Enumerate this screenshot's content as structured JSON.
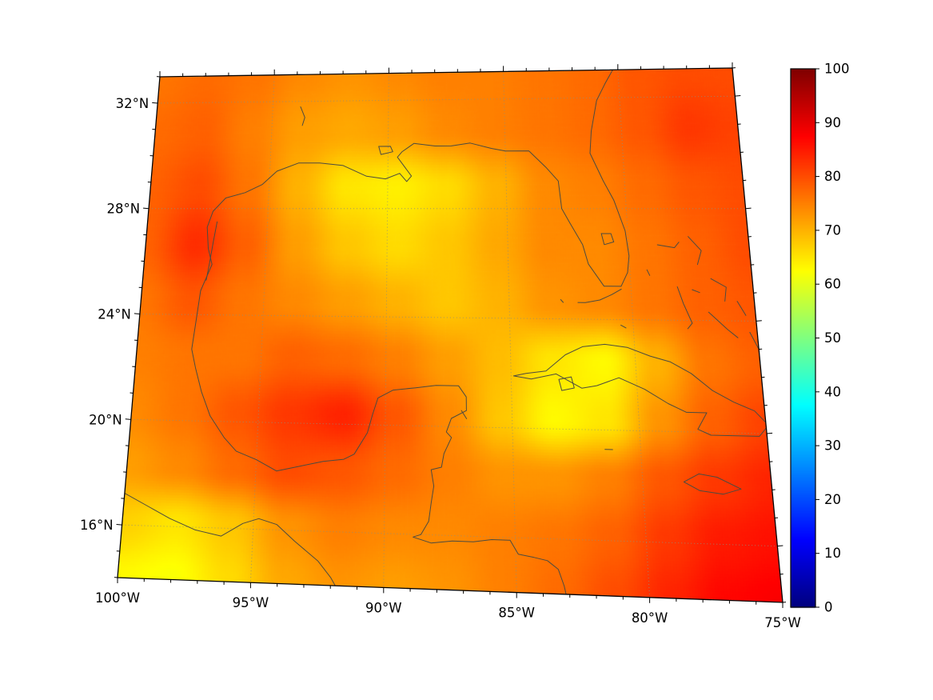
{
  "figure": {
    "background": "#ffffff",
    "colors": {
      "frame": "#000000",
      "coastline": "#4b4b40",
      "graticule": "#8f8f7a",
      "tick": "#000000",
      "label": "#000000"
    },
    "axes": {
      "lat_ticks": [
        {
          "label": "32°N",
          "value": 32
        },
        {
          "label": "28°N",
          "value": 28
        },
        {
          "label": "24°N",
          "value": 24
        },
        {
          "label": "20°N",
          "value": 20
        },
        {
          "label": "16°N",
          "value": 16
        }
      ],
      "lon_ticks": [
        {
          "label": "100°W",
          "value": -100
        },
        {
          "label": "95°W",
          "value": -95
        },
        {
          "label": "90°W",
          "value": -90
        },
        {
          "label": "85°W",
          "value": -85
        },
        {
          "label": "80°W",
          "value": -80
        },
        {
          "label": "75°W",
          "value": -75
        }
      ],
      "minor_tick_step_deg": 1
    },
    "colorbar": {
      "min": 0,
      "max": 100,
      "colormap": "jet",
      "ticks": [
        {
          "label": "0",
          "value": 0
        },
        {
          "label": "10",
          "value": 10
        },
        {
          "label": "20",
          "value": 20
        },
        {
          "label": "30",
          "value": 30
        },
        {
          "label": "40",
          "value": 40
        },
        {
          "label": "50",
          "value": 50
        },
        {
          "label": "60",
          "value": 60
        },
        {
          "label": "70",
          "value": 70
        },
        {
          "label": "80",
          "value": 80
        },
        {
          "label": "90",
          "value": 90
        },
        {
          "label": "100",
          "value": 100
        }
      ]
    }
  },
  "chart_data": {
    "type": "heatmap",
    "title": "",
    "xlabel": "",
    "ylabel": "",
    "colormap": "jet",
    "zlim": [
      0,
      100
    ],
    "x_lon_range": [
      -100,
      -75
    ],
    "y_lat_range": [
      33,
      14
    ],
    "grid_rows_north_to_south": [
      [
        76,
        77,
        76,
        74,
        73,
        74,
        75,
        75,
        76,
        77,
        79,
        80,
        80
      ],
      [
        77,
        78,
        75,
        72,
        71,
        72,
        74,
        75,
        76,
        77,
        79,
        82,
        81
      ],
      [
        78,
        80,
        76,
        70,
        65,
        64,
        66,
        70,
        74,
        75,
        77,
        79,
        80
      ],
      [
        78,
        83,
        78,
        72,
        68,
        66,
        68,
        71,
        74,
        74,
        76,
        78,
        80
      ],
      [
        76,
        79,
        76,
        74,
        72,
        70,
        68,
        70,
        73,
        74,
        76,
        78,
        79
      ],
      [
        75,
        76,
        76,
        78,
        77,
        75,
        72,
        69,
        65,
        63,
        70,
        76,
        78
      ],
      [
        74,
        76,
        79,
        82,
        84,
        79,
        74,
        68,
        63,
        65,
        73,
        78,
        81
      ],
      [
        72,
        74,
        77,
        80,
        79,
        77,
        75,
        73,
        73,
        75,
        79,
        82,
        84
      ],
      [
        67,
        65,
        68,
        73,
        75,
        74,
        74,
        75,
        76,
        78,
        82,
        85,
        86
      ],
      [
        63,
        62,
        66,
        71,
        73,
        72,
        73,
        75,
        77,
        80,
        84,
        87,
        88
      ]
    ]
  },
  "map": {
    "graticule": {
      "lons": [
        -100,
        -95,
        -90,
        -85,
        -80,
        -75
      ],
      "lats": [
        16,
        20,
        24,
        28,
        32
      ]
    },
    "coastlines": [
      {
        "name": "north-america-gulf-coast",
        "points": [
          [
            -80.0,
            33.3
          ],
          [
            -80.6,
            32.5
          ],
          [
            -81.0,
            31.9
          ],
          [
            -81.3,
            30.8
          ],
          [
            -81.4,
            30.0
          ],
          [
            -80.9,
            29.0
          ],
          [
            -80.5,
            28.3
          ],
          [
            -80.1,
            27.2
          ],
          [
            -80.0,
            26.3
          ],
          [
            -80.1,
            25.7
          ],
          [
            -80.4,
            25.2
          ],
          [
            -81.1,
            25.2
          ],
          [
            -81.7,
            26.0
          ],
          [
            -81.9,
            26.7
          ],
          [
            -82.4,
            27.5
          ],
          [
            -82.7,
            28.0
          ],
          [
            -82.8,
            29.0
          ],
          [
            -83.3,
            29.5
          ],
          [
            -84.0,
            30.1
          ],
          [
            -85.0,
            30.1
          ],
          [
            -85.6,
            30.2
          ],
          [
            -86.5,
            30.4
          ],
          [
            -87.3,
            30.3
          ],
          [
            -88.0,
            30.3
          ],
          [
            -88.9,
            30.4
          ],
          [
            -89.4,
            30.1
          ],
          [
            -89.6,
            29.9
          ],
          [
            -89.0,
            29.2
          ],
          [
            -89.2,
            29.0
          ],
          [
            -89.5,
            29.3
          ],
          [
            -90.1,
            29.1
          ],
          [
            -90.9,
            29.2
          ],
          [
            -91.9,
            29.6
          ],
          [
            -92.9,
            29.7
          ],
          [
            -93.8,
            29.7
          ],
          [
            -94.7,
            29.4
          ],
          [
            -95.3,
            28.9
          ],
          [
            -96.0,
            28.6
          ],
          [
            -96.8,
            28.4
          ],
          [
            -97.3,
            27.9
          ],
          [
            -97.5,
            27.3
          ],
          [
            -97.4,
            26.5
          ],
          [
            -97.2,
            25.9
          ],
          [
            -97.6,
            24.9
          ],
          [
            -97.7,
            23.8
          ],
          [
            -97.8,
            22.7
          ],
          [
            -97.6,
            22.0
          ],
          [
            -97.3,
            21.1
          ],
          [
            -96.9,
            20.2
          ],
          [
            -96.3,
            19.4
          ],
          [
            -95.8,
            18.9
          ],
          [
            -95.0,
            18.6
          ],
          [
            -94.2,
            18.2
          ],
          [
            -93.3,
            18.4
          ],
          [
            -92.4,
            18.6
          ],
          [
            -91.6,
            18.7
          ],
          [
            -91.2,
            18.9
          ],
          [
            -90.7,
            19.7
          ],
          [
            -90.5,
            20.4
          ],
          [
            -90.3,
            21.0
          ],
          [
            -89.7,
            21.3
          ],
          [
            -88.8,
            21.4
          ],
          [
            -88.0,
            21.5
          ],
          [
            -87.1,
            21.5
          ],
          [
            -86.8,
            21.1
          ],
          [
            -86.8,
            20.6
          ],
          [
            -87.4,
            20.3
          ],
          [
            -87.6,
            19.8
          ],
          [
            -87.4,
            19.6
          ],
          [
            -87.7,
            19.0
          ],
          [
            -87.8,
            18.5
          ],
          [
            -88.2,
            18.4
          ],
          [
            -88.1,
            17.8
          ],
          [
            -88.2,
            17.2
          ],
          [
            -88.3,
            16.5
          ],
          [
            -88.6,
            16.0
          ],
          [
            -88.9,
            15.9
          ],
          [
            -88.2,
            15.7
          ],
          [
            -87.4,
            15.8
          ],
          [
            -86.6,
            15.8
          ],
          [
            -85.9,
            15.9
          ],
          [
            -85.2,
            15.9
          ],
          [
            -84.9,
            15.4
          ],
          [
            -84.3,
            15.3
          ],
          [
            -83.8,
            15.2
          ],
          [
            -83.4,
            14.9
          ],
          [
            -83.2,
            14.3
          ],
          [
            -83.1,
            13.8
          ]
        ]
      },
      {
        "name": "pacific-coast",
        "points": [
          [
            -100.4,
            17.4
          ],
          [
            -99.0,
            16.7
          ],
          [
            -98.2,
            16.3
          ],
          [
            -97.2,
            15.9
          ],
          [
            -96.2,
            15.7
          ],
          [
            -95.4,
            16.2
          ],
          [
            -94.8,
            16.4
          ],
          [
            -94.1,
            16.2
          ],
          [
            -93.4,
            15.6
          ],
          [
            -92.5,
            14.9
          ],
          [
            -92.0,
            14.3
          ],
          [
            -91.7,
            13.8
          ]
        ]
      },
      {
        "name": "texas-barrier-island",
        "points": [
          [
            -97.1,
            27.5
          ],
          [
            -97.2,
            26.8
          ],
          [
            -97.3,
            26.0
          ],
          [
            -97.4,
            25.3
          ]
        ]
      },
      {
        "name": "lake-pontchartrain",
        "points": [
          [
            -90.4,
            30.3
          ],
          [
            -89.9,
            30.3
          ],
          [
            -89.8,
            30.1
          ],
          [
            -90.3,
            30.0
          ],
          [
            -90.4,
            30.3
          ]
        ]
      },
      {
        "name": "toledo-bend",
        "points": [
          [
            -93.8,
            31.8
          ],
          [
            -93.6,
            31.4
          ],
          [
            -93.7,
            31.1
          ]
        ]
      },
      {
        "name": "lake-okeechobee",
        "points": [
          [
            -81.1,
            27.1
          ],
          [
            -80.7,
            27.1
          ],
          [
            -80.6,
            26.8
          ],
          [
            -81.0,
            26.7
          ],
          [
            -81.1,
            27.1
          ]
        ]
      },
      {
        "name": "cuba",
        "points": [
          [
            -84.9,
            21.9
          ],
          [
            -84.4,
            22.0
          ],
          [
            -83.6,
            22.1
          ],
          [
            -82.8,
            22.7
          ],
          [
            -82.1,
            23.0
          ],
          [
            -81.2,
            23.1
          ],
          [
            -80.3,
            23.0
          ],
          [
            -79.4,
            22.7
          ],
          [
            -78.6,
            22.5
          ],
          [
            -77.8,
            22.1
          ],
          [
            -77.0,
            21.5
          ],
          [
            -76.2,
            21.1
          ],
          [
            -75.4,
            20.8
          ],
          [
            -74.9,
            20.3
          ],
          [
            -75.3,
            19.9
          ],
          [
            -76.2,
            19.9
          ],
          [
            -77.2,
            19.9
          ],
          [
            -77.7,
            20.1
          ],
          [
            -77.3,
            20.7
          ],
          [
            -78.1,
            20.7
          ],
          [
            -78.8,
            21.0
          ],
          [
            -79.7,
            21.5
          ],
          [
            -80.7,
            21.9
          ],
          [
            -81.6,
            21.6
          ],
          [
            -82.2,
            21.5
          ],
          [
            -83.2,
            22.0
          ],
          [
            -84.2,
            21.8
          ],
          [
            -84.9,
            21.9
          ]
        ]
      },
      {
        "name": "isla-de-la-juventud",
        "points": [
          [
            -83.1,
            21.8
          ],
          [
            -82.6,
            21.9
          ],
          [
            -82.5,
            21.5
          ],
          [
            -83.0,
            21.4
          ],
          [
            -83.1,
            21.8
          ]
        ]
      },
      {
        "name": "jamaica",
        "points": [
          [
            -78.4,
            18.2
          ],
          [
            -77.8,
            18.5
          ],
          [
            -77.1,
            18.4
          ],
          [
            -76.2,
            18.0
          ],
          [
            -76.9,
            17.8
          ],
          [
            -77.8,
            17.9
          ],
          [
            -78.4,
            18.2
          ]
        ]
      },
      {
        "name": "grand-cayman",
        "points": [
          [
            -81.4,
            19.3
          ],
          [
            -81.1,
            19.3
          ]
        ]
      },
      {
        "name": "cozumel",
        "points": [
          [
            -87.0,
            20.6
          ],
          [
            -86.8,
            20.3
          ]
        ]
      },
      {
        "name": "grand-bahama",
        "points": [
          [
            -78.8,
            26.7
          ],
          [
            -78.1,
            26.6
          ],
          [
            -77.9,
            26.8
          ]
        ]
      },
      {
        "name": "abaco",
        "points": [
          [
            -77.5,
            27.0
          ],
          [
            -77.0,
            26.5
          ],
          [
            -77.2,
            26.0
          ]
        ]
      },
      {
        "name": "bimini",
        "points": [
          [
            -79.3,
            25.8
          ],
          [
            -79.2,
            25.6
          ]
        ]
      },
      {
        "name": "andros",
        "points": [
          [
            -78.1,
            25.2
          ],
          [
            -77.9,
            24.6
          ],
          [
            -77.6,
            23.9
          ],
          [
            -77.8,
            23.7
          ]
        ]
      },
      {
        "name": "new-providence",
        "points": [
          [
            -77.5,
            25.1
          ],
          [
            -77.2,
            25.0
          ]
        ]
      },
      {
        "name": "eleuthera",
        "points": [
          [
            -76.7,
            25.5
          ],
          [
            -76.1,
            25.2
          ],
          [
            -76.2,
            24.7
          ]
        ]
      },
      {
        "name": "cat-island",
        "points": [
          [
            -75.7,
            24.7
          ],
          [
            -75.4,
            24.2
          ]
        ]
      },
      {
        "name": "exuma-chain",
        "points": [
          [
            -76.9,
            24.3
          ],
          [
            -76.2,
            23.7
          ],
          [
            -75.8,
            23.4
          ]
        ]
      },
      {
        "name": "long-island-bahamas",
        "points": [
          [
            -75.3,
            23.6
          ],
          [
            -75.0,
            23.0
          ]
        ]
      },
      {
        "name": "cay-sal",
        "points": [
          [
            -80.5,
            23.8
          ],
          [
            -80.3,
            23.7
          ]
        ]
      },
      {
        "name": "florida-keys",
        "points": [
          [
            -80.4,
            25.1
          ],
          [
            -80.8,
            24.9
          ],
          [
            -81.3,
            24.7
          ],
          [
            -81.9,
            24.6
          ],
          [
            -82.2,
            24.6
          ]
        ]
      },
      {
        "name": "dry-tortugas",
        "points": [
          [
            -82.9,
            24.7
          ],
          [
            -82.8,
            24.6
          ]
        ]
      }
    ]
  }
}
